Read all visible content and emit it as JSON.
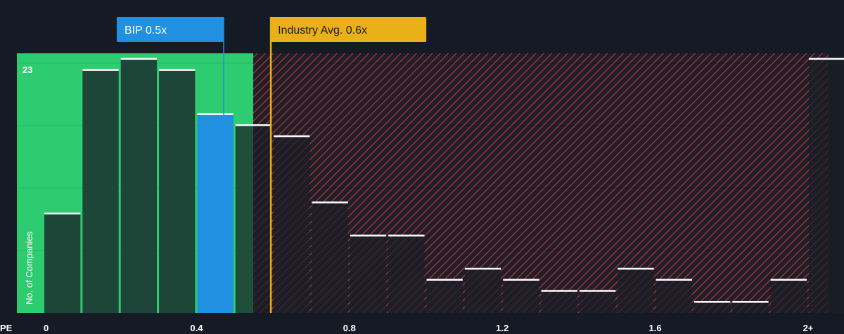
{
  "chart_data": {
    "type": "bar",
    "title": "",
    "xlabel": "PE",
    "ylabel": "No. of Companies",
    "x_tick_labels": [
      "0",
      "0.4",
      "0.8",
      "1.2",
      "1.6",
      "2+"
    ],
    "x_tick_values": [
      0,
      0.4,
      0.8,
      1.2,
      1.6,
      2.0
    ],
    "y_tick_labels": [
      "23"
    ],
    "ylim": [
      0,
      23.5
    ],
    "bin_width": 0.1,
    "x": [
      0,
      0.1,
      0.2,
      0.3,
      0.4,
      0.5,
      0.6,
      0.7,
      0.8,
      0.9,
      1.0,
      1.1,
      1.2,
      1.3,
      1.4,
      1.5,
      1.6,
      1.7,
      1.8,
      1.9,
      2.0
    ],
    "values": [
      9,
      22,
      23,
      22,
      18,
      17,
      16,
      10,
      7,
      7,
      3,
      4,
      3,
      2,
      2,
      4,
      3,
      1,
      1,
      3,
      23
    ],
    "highlight": {
      "label": "BIP 0.5x",
      "value": 0.5,
      "bin_index": 4,
      "color": "#2190e0"
    },
    "industry_avg": {
      "label": "Industry Avg. 0.6x",
      "value": 0.6,
      "color": "#e9b018"
    },
    "grid": true,
    "colors": {
      "background": "#151b24",
      "fair_zone": "#2ecc71",
      "bar_fill_green": "#1d4638",
      "bar_fill_red": "#232830",
      "hatch": "#d23a4c",
      "bar_top": "#ffffff"
    }
  }
}
